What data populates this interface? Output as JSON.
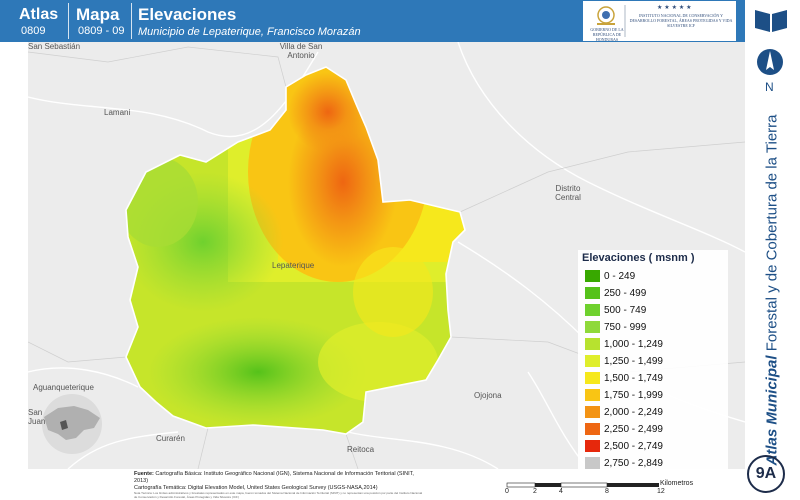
{
  "header": {
    "atlas_label": "Atlas",
    "atlas_code": "0809",
    "mapa_label": "Mapa",
    "mapa_code": "0809 - 09",
    "title": "Elevaciones",
    "subtitle": "Municipio de Lepaterique, Francisco Morazán",
    "logo_left_text": "GOBIERNO DE LA REPÚBLICA DE HONDURAS",
    "logo_right_text": "INSTITUTO NACIONAL DE CONSERVACIÓN Y DESARROLLO FORESTAL, ÁREAS PROTEGIDAS Y VIDA SILVESTRE ICF"
  },
  "map": {
    "places": {
      "san_sebastian": "San Sebastián",
      "villa_de_san_antonio_1": "Villa de San",
      "villa_de_san_antonio_2": "Antonio",
      "lamani": "Lamani",
      "distrito_central_1": "Distrito",
      "distrito_central_2": "Central",
      "lepaterique": "Lepaterique",
      "aguanqueterique": "Aguanqueterique",
      "ojojona": "Ojojona",
      "san_juan_1": "San",
      "san_juan_2": "Juan",
      "curaren": "Curarén",
      "reitoca": "Reitoca"
    },
    "north_label": "N"
  },
  "legend": {
    "title": "Elevaciones ( msnm )",
    "items": [
      {
        "label": "0 - 249",
        "color": "#38a800"
      },
      {
        "label": "250 - 499",
        "color": "#55c21a"
      },
      {
        "label": "500 - 749",
        "color": "#6fd12e"
      },
      {
        "label": "750 - 999",
        "color": "#8fd93a"
      },
      {
        "label": "1,000 - 1,249",
        "color": "#b7e22f"
      },
      {
        "label": "1,250 - 1,499",
        "color": "#dfee2b"
      },
      {
        "label": "1,500 - 1,749",
        "color": "#f6e81c"
      },
      {
        "label": "1,750 - 1,999",
        "color": "#f9c514"
      },
      {
        "label": "2,000 - 2,249",
        "color": "#f39314"
      },
      {
        "label": "2,250 - 2,499",
        "color": "#ee6612"
      },
      {
        "label": "2,500 - 2,749",
        "color": "#e6280c"
      },
      {
        "label": "2,750 - 2,849",
        "color": "#c8c8c8"
      }
    ]
  },
  "footer": {
    "sources_label": "Fuente:",
    "sources_line1": "Cartografía Básica: Instituto Geográfico Nacional (IGN), Sistema Nacional de Información Teritorial (SINIT, 2013)",
    "sources_line2": "Cartografía Temática: Digital Elevation Model, United States Geological Survey (USGS-NASA,2014)",
    "notes": "Nota Técnica: Los límites administrativos y forestales representados en este mapa, fueron tomados del Sistema Nacional de Información Territorial (SINIT) y no representan una posición por parte del Instituto Nacional de Conservación y Desarrollo Forestal, Áreas Protegidas y Vida Silvestre (ICF)",
    "scale_ticks": [
      "0",
      "2",
      "4",
      "8",
      "12"
    ],
    "scale_unit": "Kilometros"
  },
  "sidebar": {
    "title_bold": "Atlas Municipal",
    "title_rest": "Forestal y de Cobertura de la Tierra",
    "badge": "9A"
  }
}
